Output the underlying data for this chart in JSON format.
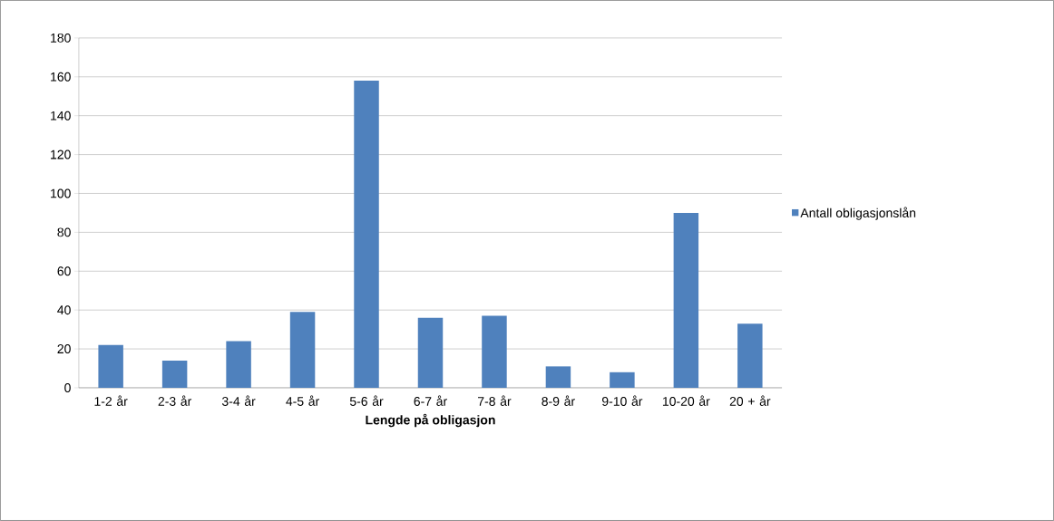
{
  "chart_data": {
    "type": "bar",
    "xlabel": "Lengde på obligasjon",
    "categories": [
      "1-2 år",
      "2-3 år",
      "3-4 år",
      "4-5 år",
      "5-6 år",
      "6-7 år",
      "7-8 år",
      "8-9 år",
      "9-10 år",
      "10-20 år",
      "20 + år"
    ],
    "series": [
      {
        "name": "Antall obligasjonslån",
        "color": "#4f81bd",
        "values": [
          22,
          14,
          24,
          39,
          158,
          36,
          37,
          11,
          8,
          90,
          33
        ]
      }
    ],
    "ylim": [
      0,
      180
    ],
    "yticks": [
      0,
      20,
      40,
      60,
      80,
      100,
      120,
      140,
      160,
      180
    ],
    "grid": "y",
    "legend": "right"
  }
}
